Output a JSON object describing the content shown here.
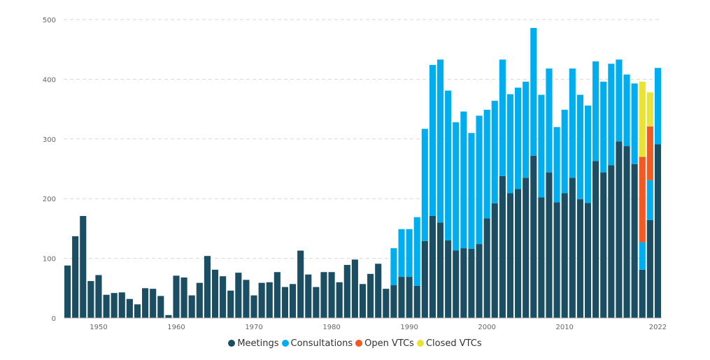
{
  "chart_data": {
    "type": "bar",
    "stacked": true,
    "title": "",
    "xlabel": "",
    "ylabel": "",
    "ylim": [
      0,
      500
    ],
    "yticks": [
      0,
      100,
      200,
      300,
      400,
      500
    ],
    "xtick_labels": [
      "1950",
      "1960",
      "1970",
      "1980",
      "1990",
      "2000",
      "2010",
      "2022"
    ],
    "grid": "horizontal dashed",
    "legend_position": "bottom-center",
    "categories": [
      1946,
      1947,
      1948,
      1949,
      1950,
      1951,
      1952,
      1953,
      1954,
      1955,
      1956,
      1957,
      1958,
      1959,
      1960,
      1961,
      1962,
      1963,
      1964,
      1965,
      1966,
      1967,
      1968,
      1969,
      1970,
      1971,
      1972,
      1973,
      1974,
      1975,
      1976,
      1977,
      1978,
      1979,
      1980,
      1981,
      1982,
      1983,
      1984,
      1985,
      1986,
      1987,
      1988,
      1989,
      1990,
      1991,
      1992,
      1993,
      1994,
      1995,
      1996,
      1997,
      1998,
      1999,
      2000,
      2001,
      2002,
      2003,
      2004,
      2005,
      2006,
      2007,
      2008,
      2009,
      2010,
      2011,
      2012,
      2013,
      2014,
      2015,
      2016,
      2017,
      2018,
      2019,
      2020,
      2021,
      2022
    ],
    "series": [
      {
        "name": "Meetings",
        "color": "#1b4e63",
        "values": [
          88,
          137,
          171,
          62,
          72,
          39,
          42,
          43,
          32,
          23,
          50,
          49,
          37,
          5,
          71,
          68,
          38,
          59,
          104,
          81,
          70,
          46,
          76,
          64,
          38,
          59,
          60,
          77,
          52,
          57,
          113,
          73,
          52,
          77,
          77,
          60,
          89,
          98,
          57,
          74,
          91,
          49,
          55,
          69,
          69,
          54,
          129,
          171,
          160,
          130,
          113,
          117,
          116,
          124,
          167,
          192,
          238,
          209,
          216,
          235,
          272,
          202,
          244,
          194,
          209,
          235,
          199,
          193,
          263,
          244,
          256,
          296,
          288,
          258,
          81,
          164,
          291
        ]
      },
      {
        "name": "Consultations",
        "color": "#00aeef",
        "values": [
          0,
          0,
          0,
          0,
          0,
          0,
          0,
          0,
          0,
          0,
          0,
          0,
          0,
          0,
          0,
          0,
          0,
          0,
          0,
          0,
          0,
          0,
          0,
          0,
          0,
          0,
          0,
          0,
          0,
          0,
          0,
          0,
          0,
          0,
          0,
          0,
          0,
          0,
          0,
          0,
          0,
          0,
          62,
          80,
          80,
          115,
          188,
          253,
          273,
          251,
          215,
          229,
          194,
          215,
          182,
          172,
          195,
          166,
          170,
          161,
          214,
          172,
          174,
          126,
          140,
          183,
          175,
          163,
          167,
          152,
          170,
          137,
          120,
          135,
          46,
          67,
          128
        ]
      },
      {
        "name": "Open VTCs",
        "color": "#f15a22",
        "values": [
          0,
          0,
          0,
          0,
          0,
          0,
          0,
          0,
          0,
          0,
          0,
          0,
          0,
          0,
          0,
          0,
          0,
          0,
          0,
          0,
          0,
          0,
          0,
          0,
          0,
          0,
          0,
          0,
          0,
          0,
          0,
          0,
          0,
          0,
          0,
          0,
          0,
          0,
          0,
          0,
          0,
          0,
          0,
          0,
          0,
          0,
          0,
          0,
          0,
          0,
          0,
          0,
          0,
          0,
          0,
          0,
          0,
          0,
          0,
          0,
          0,
          0,
          0,
          0,
          0,
          0,
          0,
          0,
          0,
          0,
          0,
          0,
          0,
          0,
          143,
          90,
          0
        ]
      },
      {
        "name": "Closed VTCs",
        "color": "#e8e336",
        "values": [
          0,
          0,
          0,
          0,
          0,
          0,
          0,
          0,
          0,
          0,
          0,
          0,
          0,
          0,
          0,
          0,
          0,
          0,
          0,
          0,
          0,
          0,
          0,
          0,
          0,
          0,
          0,
          0,
          0,
          0,
          0,
          0,
          0,
          0,
          0,
          0,
          0,
          0,
          0,
          0,
          0,
          0,
          0,
          0,
          0,
          0,
          0,
          0,
          0,
          0,
          0,
          0,
          0,
          0,
          0,
          0,
          0,
          0,
          0,
          0,
          0,
          0,
          0,
          0,
          0,
          0,
          0,
          0,
          0,
          0,
          0,
          0,
          0,
          0,
          126,
          57,
          0
        ]
      }
    ]
  }
}
